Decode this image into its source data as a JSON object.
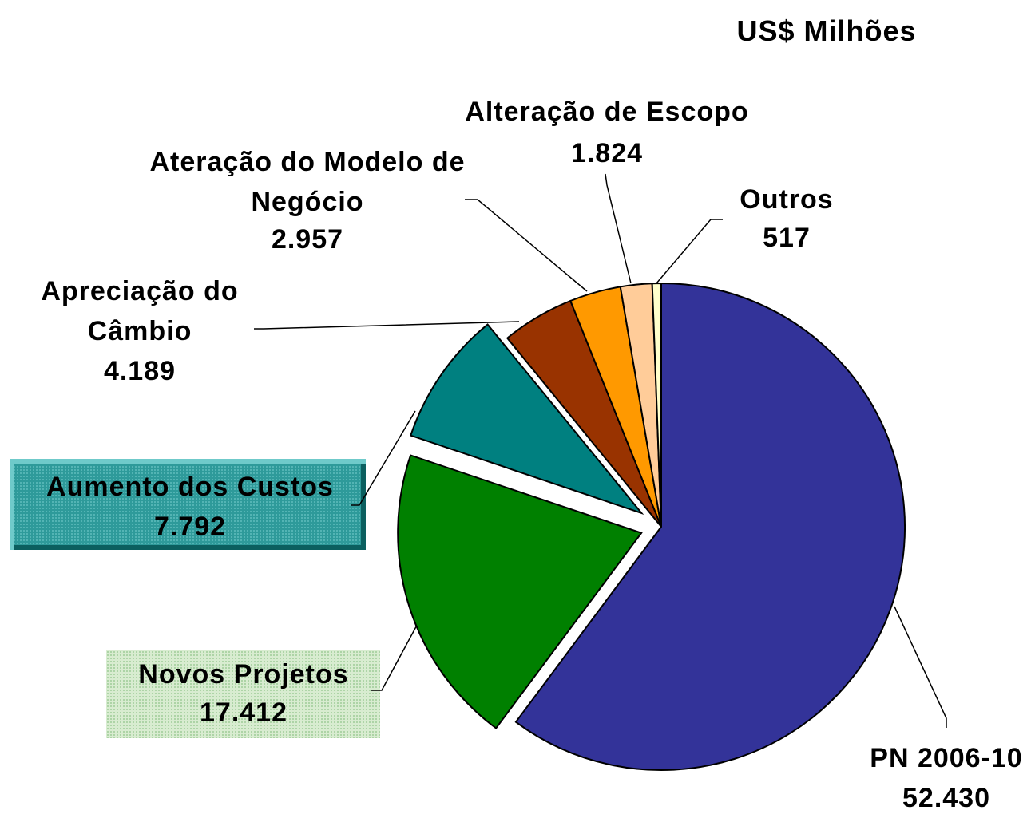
{
  "chart_data": {
    "type": "pie",
    "title": "US$ Milhões",
    "categories": [
      "PN 2006-10",
      "Novos Projetos",
      "Aumento dos Custos",
      "Apreciação do Câmbio",
      "Ateração do Modelo de Negócio",
      "Alteração de Escopo",
      "Outros"
    ],
    "values": [
      52430,
      17412,
      7792,
      4189,
      2957,
      1824,
      517
    ],
    "value_labels": [
      "52.430",
      "17.412",
      "7.792",
      "4.189",
      "2.957",
      "1.824",
      "517"
    ],
    "colors": [
      "#333399",
      "#008000",
      "#008080",
      "#993300",
      "#ff9900",
      "#ffcc99",
      "#ffffcc"
    ]
  }
}
